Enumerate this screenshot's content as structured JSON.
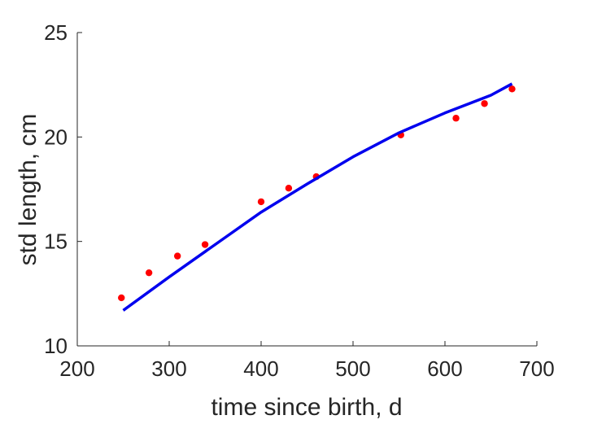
{
  "chart_data": {
    "type": "scatter",
    "xlabel": "time since birth, d",
    "ylabel": "std length, cm",
    "xlim": [
      200,
      700
    ],
    "ylim": [
      10,
      25
    ],
    "xticks": [
      200,
      300,
      400,
      500,
      600,
      700
    ],
    "yticks": [
      10,
      15,
      20,
      25
    ],
    "xtick_labels": [
      "200",
      "300",
      "400",
      "500",
      "600",
      "700"
    ],
    "ytick_labels": [
      "10",
      "15",
      "20",
      "25"
    ],
    "grid": false,
    "series": [
      {
        "kind": "points",
        "color": "#ff0000",
        "points": [
          {
            "x": 248,
            "y": 12.3
          },
          {
            "x": 278,
            "y": 13.5
          },
          {
            "x": 309,
            "y": 14.3
          },
          {
            "x": 339,
            "y": 14.85
          },
          {
            "x": 400,
            "y": 16.9
          },
          {
            "x": 430,
            "y": 17.55
          },
          {
            "x": 460,
            "y": 18.1
          },
          {
            "x": 552,
            "y": 20.1
          },
          {
            "x": 612,
            "y": 20.9
          },
          {
            "x": 643,
            "y": 21.6
          },
          {
            "x": 673,
            "y": 22.3
          }
        ]
      },
      {
        "kind": "line",
        "color": "#0000ee",
        "points": [
          {
            "x": 250,
            "y": 11.7
          },
          {
            "x": 300,
            "y": 13.3
          },
          {
            "x": 350,
            "y": 14.85
          },
          {
            "x": 400,
            "y": 16.4
          },
          {
            "x": 450,
            "y": 17.75
          },
          {
            "x": 500,
            "y": 19.05
          },
          {
            "x": 550,
            "y": 20.2
          },
          {
            "x": 600,
            "y": 21.15
          },
          {
            "x": 650,
            "y": 22.0
          },
          {
            "x": 673,
            "y": 22.55
          }
        ]
      }
    ]
  }
}
